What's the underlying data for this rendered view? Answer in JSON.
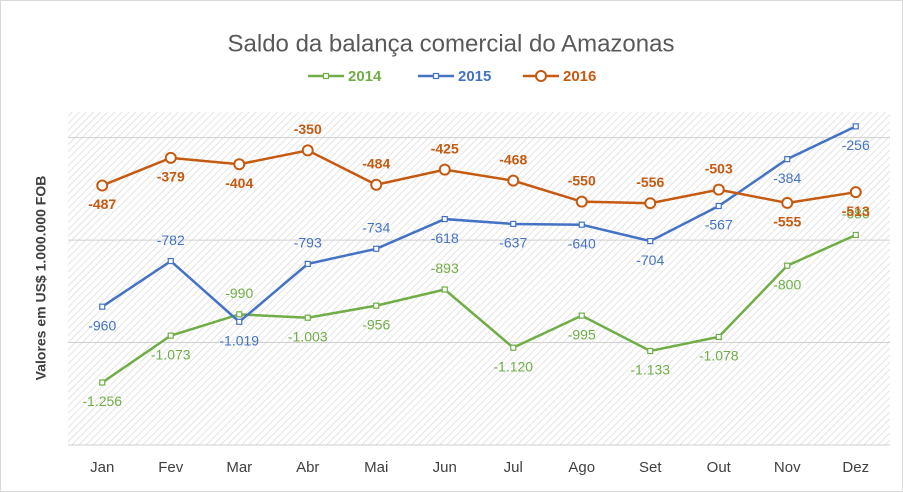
{
  "chart_data": {
    "type": "line",
    "title": "Saldo da balança comercial do Amazonas",
    "y_axis_label": "Valores em US$ 1.000.000 FOB",
    "categories": [
      "Jan",
      "Fev",
      "Mar",
      "Abr",
      "Mai",
      "Jun",
      "Jul",
      "Ago",
      "Set",
      "Out",
      "Nov",
      "Dez"
    ],
    "series": [
      {
        "name": "2014",
        "color": "#70ad47",
        "marker": "square",
        "values": [
          -1256,
          -1073,
          -990,
          -1003,
          -956,
          -893,
          -1120,
          -995,
          -1133,
          -1078,
          -800,
          -680
        ],
        "value_labels": [
          "-1.256",
          "-1.073",
          "-990",
          "-1.003",
          "-956",
          "-893",
          "-1.120",
          "-995",
          "-1.133",
          "-1.078",
          "-800",
          "-680"
        ]
      },
      {
        "name": "2015",
        "color": "#4472c4",
        "marker": "square",
        "values": [
          -960,
          -782,
          -1019,
          -793,
          -734,
          -618,
          -637,
          -640,
          -704,
          -567,
          -384,
          -256
        ],
        "value_labels": [
          "-960",
          "-782",
          "-1.019",
          "-793",
          "-734",
          "-618",
          "-637",
          "-640",
          "-704",
          "-567",
          "-384",
          "-256"
        ]
      },
      {
        "name": "2016",
        "color": "#c55a11",
        "marker": "circle",
        "values": [
          -487,
          -379,
          -404,
          -350,
          -484,
          -425,
          -468,
          -550,
          -556,
          -503,
          -555,
          -513
        ],
        "value_labels": [
          "-487",
          "-379",
          "-404",
          "-350",
          "-484",
          "-425",
          "-468",
          "-550",
          "-556",
          "-503",
          "-555",
          "-513"
        ]
      }
    ],
    "ylim": [
      -1500,
      -200
    ],
    "yticks": [
      -1500,
      -1100,
      -700,
      -300
    ],
    "grid": true,
    "legend": "top"
  }
}
